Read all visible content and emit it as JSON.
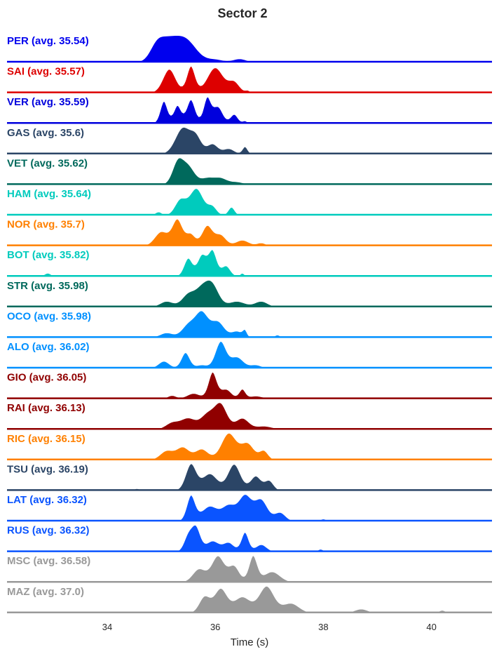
{
  "chart_data": {
    "type": "ridgeline",
    "title": "Sector 2",
    "xlabel": "Time (s)",
    "ylabel": "",
    "xlim": [
      32.2,
      41.2
    ],
    "xticks": [
      34,
      36,
      38,
      40
    ],
    "grid": false,
    "series": [
      {
        "label": "PER (avg. 35.54)",
        "color": "#0000ee",
        "peaks": [
          [
            34.9,
            0.12,
            0.5
          ],
          [
            35.1,
            0.18,
            0.85
          ],
          [
            35.45,
            0.2,
            1.0
          ],
          [
            36.0,
            0.15,
            0.12
          ],
          [
            36.45,
            0.12,
            0.15
          ],
          [
            36.9,
            0.1,
            0.05
          ]
        ]
      },
      {
        "label": "SAI (avg. 35.57)",
        "color": "#dd0000",
        "peaks": [
          [
            35.15,
            0.12,
            0.8
          ],
          [
            35.55,
            0.08,
            0.9
          ],
          [
            36.0,
            0.15,
            0.85
          ],
          [
            36.35,
            0.1,
            0.35
          ],
          [
            36.6,
            0.04,
            0.07
          ]
        ]
      },
      {
        "label": "VER (avg. 35.59)",
        "color": "#0000dd",
        "peaks": [
          [
            35.05,
            0.07,
            0.75
          ],
          [
            35.3,
            0.07,
            0.6
          ],
          [
            35.55,
            0.08,
            0.8
          ],
          [
            35.85,
            0.07,
            0.85
          ],
          [
            36.05,
            0.09,
            0.55
          ],
          [
            36.35,
            0.07,
            0.3
          ],
          [
            36.55,
            0.04,
            0.08
          ]
        ]
      },
      {
        "label": "GAS (avg. 35.6)",
        "color": "#2b4566",
        "peaks": [
          [
            35.4,
            0.14,
            1.0
          ],
          [
            35.65,
            0.1,
            0.6
          ],
          [
            35.95,
            0.1,
            0.38
          ],
          [
            36.25,
            0.1,
            0.2
          ],
          [
            36.55,
            0.05,
            0.28
          ]
        ]
      },
      {
        "label": "VET (avg. 35.62)",
        "color": "#00695c",
        "peaks": [
          [
            35.3,
            0.1,
            0.85
          ],
          [
            35.5,
            0.12,
            0.72
          ],
          [
            35.85,
            0.12,
            0.25
          ],
          [
            36.1,
            0.12,
            0.25
          ],
          [
            36.4,
            0.12,
            0.1
          ]
        ]
      },
      {
        "label": "HAM (avg. 35.64)",
        "color": "#00cbbd",
        "peaks": [
          [
            34.95,
            0.06,
            0.12
          ],
          [
            35.35,
            0.1,
            0.55
          ],
          [
            35.65,
            0.13,
            1.0
          ],
          [
            35.95,
            0.08,
            0.3
          ],
          [
            36.3,
            0.06,
            0.3
          ]
        ]
      },
      {
        "label": "NOR (avg. 35.7)",
        "color": "#ff8000",
        "peaks": [
          [
            35.0,
            0.12,
            0.5
          ],
          [
            35.3,
            0.1,
            0.95
          ],
          [
            35.55,
            0.08,
            0.4
          ],
          [
            35.85,
            0.1,
            0.72
          ],
          [
            36.1,
            0.1,
            0.38
          ],
          [
            36.5,
            0.12,
            0.2
          ],
          [
            36.85,
            0.08,
            0.1
          ]
        ]
      },
      {
        "label": "BOT (avg. 35.82)",
        "color": "#00cbbd",
        "peaks": [
          [
            32.9,
            0.06,
            0.12
          ],
          [
            35.5,
            0.08,
            0.7
          ],
          [
            35.75,
            0.08,
            0.8
          ],
          [
            35.95,
            0.08,
            1.0
          ],
          [
            36.2,
            0.08,
            0.4
          ],
          [
            36.5,
            0.04,
            0.12
          ]
        ]
      },
      {
        "label": "STR (avg. 35.98)",
        "color": "#00695c",
        "peaks": [
          [
            35.1,
            0.12,
            0.2
          ],
          [
            35.5,
            0.12,
            0.45
          ],
          [
            35.75,
            0.12,
            0.6
          ],
          [
            35.95,
            0.12,
            0.75
          ],
          [
            36.4,
            0.15,
            0.2
          ],
          [
            36.85,
            0.12,
            0.2
          ],
          [
            37.25,
            0.06,
            0.05
          ]
        ]
      },
      {
        "label": "OCO (avg. 35.98)",
        "color": "#0090ff",
        "peaks": [
          [
            35.1,
            0.12,
            0.15
          ],
          [
            35.5,
            0.12,
            0.4
          ],
          [
            35.75,
            0.12,
            0.8
          ],
          [
            36.05,
            0.12,
            0.5
          ],
          [
            36.4,
            0.1,
            0.2
          ],
          [
            36.55,
            0.04,
            0.2
          ],
          [
            37.15,
            0.05,
            0.08
          ]
        ]
      },
      {
        "label": "ALO (avg. 36.02)",
        "color": "#0090ff",
        "peaks": [
          [
            35.05,
            0.1,
            0.22
          ],
          [
            35.45,
            0.08,
            0.5
          ],
          [
            35.75,
            0.1,
            0.1
          ],
          [
            36.1,
            0.1,
            0.85
          ],
          [
            36.4,
            0.12,
            0.35
          ],
          [
            36.75,
            0.1,
            0.1
          ],
          [
            37.35,
            0.05,
            0.04
          ]
        ]
      },
      {
        "label": "GIO (avg. 36.05)",
        "color": "#900000",
        "peaks": [
          [
            35.2,
            0.08,
            0.12
          ],
          [
            35.6,
            0.12,
            0.2
          ],
          [
            35.95,
            0.08,
            1.0
          ],
          [
            36.2,
            0.1,
            0.35
          ],
          [
            36.5,
            0.06,
            0.35
          ],
          [
            36.75,
            0.12,
            0.1
          ],
          [
            37.1,
            0.1,
            0.05
          ]
        ]
      },
      {
        "label": "RAI (avg. 36.13)",
        "color": "#900000",
        "peaks": [
          [
            35.2,
            0.12,
            0.2
          ],
          [
            35.5,
            0.14,
            0.35
          ],
          [
            35.85,
            0.12,
            0.45
          ],
          [
            36.1,
            0.12,
            0.8
          ],
          [
            36.5,
            0.12,
            0.35
          ],
          [
            36.9,
            0.15,
            0.1
          ]
        ]
      },
      {
        "label": "RIC (avg. 36.15)",
        "color": "#ff8000",
        "peaks": [
          [
            35.1,
            0.12,
            0.25
          ],
          [
            35.4,
            0.12,
            0.35
          ],
          [
            35.75,
            0.12,
            0.3
          ],
          [
            36.25,
            0.14,
            0.75
          ],
          [
            36.6,
            0.12,
            0.45
          ],
          [
            36.9,
            0.08,
            0.25
          ]
        ]
      },
      {
        "label": "TSU (avg. 36.19)",
        "color": "#2b4566",
        "peaks": [
          [
            34.55,
            0.05,
            0.04
          ],
          [
            35.55,
            0.1,
            0.55
          ],
          [
            35.9,
            0.14,
            0.35
          ],
          [
            36.35,
            0.12,
            0.55
          ],
          [
            36.75,
            0.1,
            0.3
          ],
          [
            37.0,
            0.08,
            0.2
          ]
        ]
      },
      {
        "label": "LAT (avg. 36.32)",
        "color": "#0a54ff",
        "peaks": [
          [
            35.55,
            0.08,
            0.6
          ],
          [
            35.9,
            0.15,
            0.35
          ],
          [
            36.25,
            0.12,
            0.35
          ],
          [
            36.55,
            0.12,
            0.6
          ],
          [
            36.85,
            0.12,
            0.5
          ],
          [
            37.2,
            0.1,
            0.2
          ],
          [
            38.0,
            0.05,
            0.05
          ]
        ]
      },
      {
        "label": "RUS (avg. 36.32)",
        "color": "#0a54ff",
        "peaks": [
          [
            35.5,
            0.08,
            0.45
          ],
          [
            35.65,
            0.08,
            0.65
          ],
          [
            35.95,
            0.12,
            0.3
          ],
          [
            36.25,
            0.1,
            0.25
          ],
          [
            36.55,
            0.07,
            0.55
          ],
          [
            36.85,
            0.1,
            0.2
          ],
          [
            37.95,
            0.05,
            0.07
          ],
          [
            38.3,
            0.05,
            0.04
          ]
        ]
      },
      {
        "label": "MSC (avg. 36.58)",
        "color": "#999999",
        "peaks": [
          [
            35.7,
            0.12,
            0.25
          ],
          [
            36.05,
            0.12,
            0.5
          ],
          [
            36.35,
            0.1,
            0.3
          ],
          [
            36.7,
            0.08,
            0.5
          ],
          [
            37.05,
            0.15,
            0.2
          ],
          [
            38.7,
            0.1,
            0.02
          ]
        ]
      },
      {
        "label": "MAZ (avg. 37.0)",
        "color": "#999999",
        "peaks": [
          [
            35.8,
            0.1,
            0.25
          ],
          [
            36.1,
            0.12,
            0.38
          ],
          [
            36.5,
            0.15,
            0.25
          ],
          [
            36.95,
            0.14,
            0.42
          ],
          [
            37.4,
            0.15,
            0.15
          ],
          [
            38.7,
            0.12,
            0.06
          ],
          [
            40.2,
            0.06,
            0.04
          ]
        ]
      }
    ]
  }
}
